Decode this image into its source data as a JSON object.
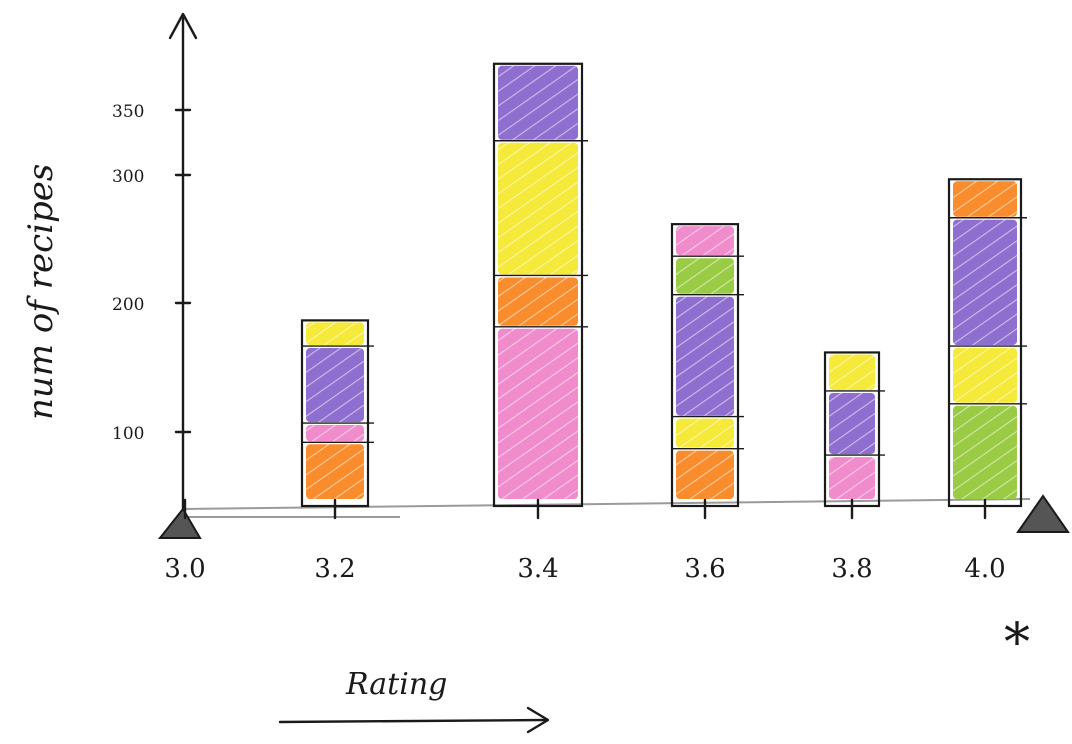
{
  "chart_data": {
    "type": "bar",
    "stacked": true,
    "xlabel": "Rating",
    "ylabel": "num of recipes",
    "x_ticks": [
      "3.0",
      "3.2",
      "3.4",
      "3.6",
      "3.8",
      "4.0"
    ],
    "y_ticks": [
      "100",
      "200",
      "300",
      "350"
    ],
    "ylim": [
      0,
      380
    ],
    "annotation": "*",
    "bars": [
      {
        "x": "3.2",
        "segments": [
          {
            "color": "#f98c2c",
            "value": 45
          },
          {
            "color": "#f08ccc",
            "value": 15
          },
          {
            "color": "#8e6fd0",
            "value": 60
          },
          {
            "color": "#f5e93a",
            "value": 20
          }
        ]
      },
      {
        "x": "3.4",
        "segments": [
          {
            "color": "#f08ccc",
            "value": 135
          },
          {
            "color": "#f98c2c",
            "value": 40
          },
          {
            "color": "#f5e93a",
            "value": 105
          },
          {
            "color": "#8e6fd0",
            "value": 60
          }
        ]
      },
      {
        "x": "3.6",
        "segments": [
          {
            "color": "#f98c2c",
            "value": 40
          },
          {
            "color": "#f5e93a",
            "value": 25
          },
          {
            "color": "#8e6fd0",
            "value": 95
          },
          {
            "color": "#9acb45",
            "value": 30
          },
          {
            "color": "#f08ccc",
            "value": 25
          }
        ]
      },
      {
        "x": "3.8",
        "segments": [
          {
            "color": "#f08ccc",
            "value": 35
          },
          {
            "color": "#8e6fd0",
            "value": 50
          },
          {
            "color": "#f5e93a",
            "value": 30
          }
        ]
      },
      {
        "x": "4.0",
        "segments": [
          {
            "color": "#9acb45",
            "value": 75
          },
          {
            "color": "#f5e93a",
            "value": 45
          },
          {
            "color": "#8e6fd0",
            "value": 100
          },
          {
            "color": "#f98c2c",
            "value": 30
          }
        ]
      }
    ]
  }
}
